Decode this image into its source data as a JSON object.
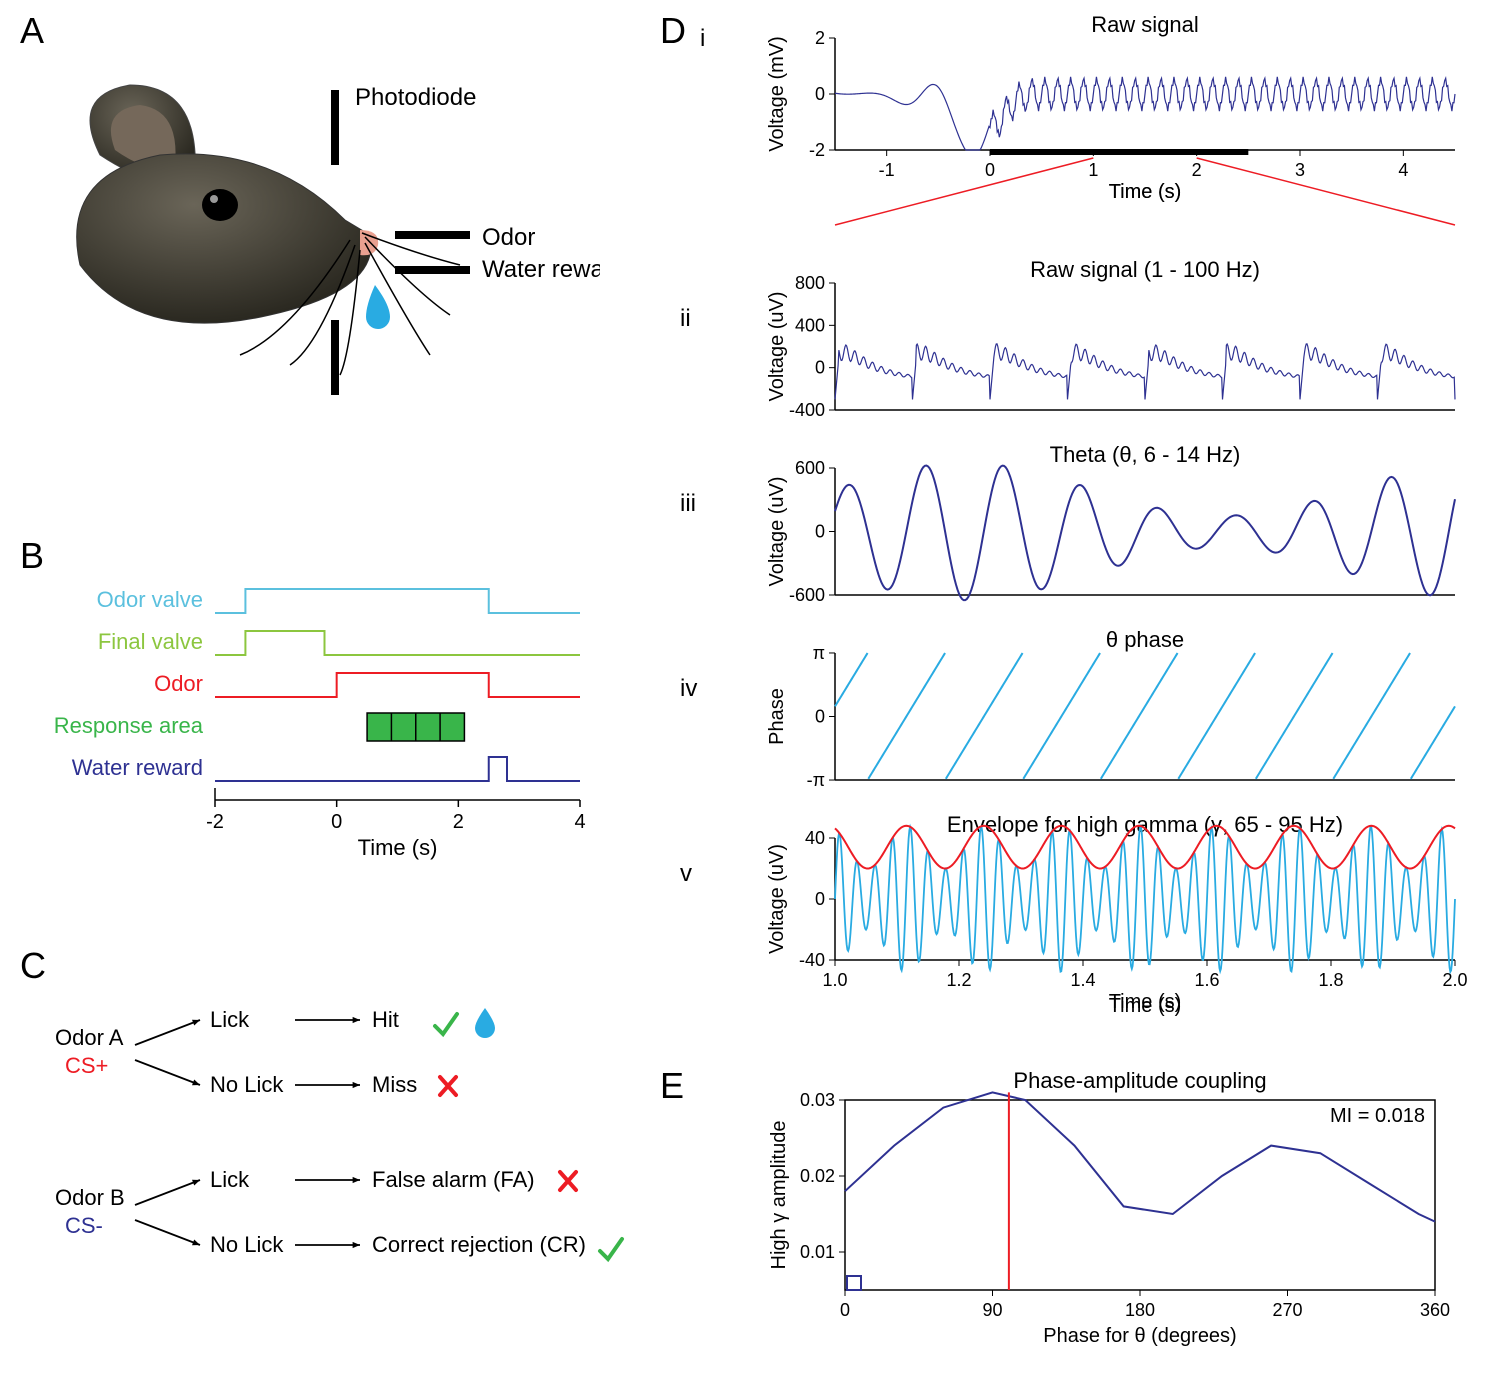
{
  "panelA": {
    "label": "A",
    "photodiode": "Photodiode",
    "odor": "Odor",
    "water_reward": "Water reward",
    "mouse_body_color": "#3a3a30",
    "mouse_ear_color": "#5a5048",
    "mouse_nose_color": "#e8a090",
    "water_drop_color": "#29abe2",
    "line_color": "#000000"
  },
  "panelB": {
    "label": "B",
    "traces": [
      {
        "name": "Odor valve",
        "color": "#5bc0de",
        "on": -1.5,
        "off": 2.5
      },
      {
        "name": "Final valve",
        "color": "#8cc63f",
        "on": -1.5,
        "off": -0.2
      },
      {
        "name": "Odor",
        "color": "#ed1c24",
        "on": 0,
        "off": 2.5
      },
      {
        "name": "Response area",
        "color": "#39b54a",
        "on": 0.5,
        "off": 2.1,
        "filled": true
      },
      {
        "name": "Water reward",
        "color": "#2e3192",
        "on": 2.5,
        "off": 2.8
      }
    ],
    "xlim": [
      -2,
      4
    ],
    "xticks": [
      -2,
      0,
      2,
      4
    ],
    "xlabel": "Time (s)",
    "axis_color": "#000000"
  },
  "panelC": {
    "label": "C",
    "odorA": "Odor A",
    "csPlus": "CS+",
    "csPlus_color": "#ed1c24",
    "odorB": "Odor B",
    "csMinus": "CS-",
    "csMinus_color": "#2e3192",
    "lick": "Lick",
    "noLick": "No Lick",
    "hit": "Hit",
    "miss": "Miss",
    "falseAlarm": "False alarm (FA)",
    "correctRejection": "Correct rejection (CR)",
    "check_color": "#39b54a",
    "cross_color": "#ed1c24",
    "water_drop_color": "#29abe2",
    "arrow_color": "#000000"
  },
  "panelD": {
    "label": "D",
    "sub_i": {
      "label": "i",
      "title": "Raw signal",
      "ylabel": "Voltage (mV)",
      "ylim": [
        -2,
        2
      ],
      "yticks": [
        -2,
        0,
        2
      ],
      "xlim": [
        -1.5,
        4.5
      ],
      "xticks": [
        -1,
        0,
        1,
        2,
        3,
        4
      ],
      "xlabel": "Time (s)",
      "line_color": "#2e3192",
      "bar_start": 0,
      "bar_end": 2.5,
      "zoom_color": "#ed1c24"
    },
    "sub_ii": {
      "label": "ii",
      "title": "Raw signal (1 - 100 Hz)",
      "ylabel": "Voltage (uV)",
      "ylim": [
        -400,
        800
      ],
      "yticks": [
        -400,
        0,
        400,
        800
      ],
      "line_color": "#2e3192"
    },
    "sub_iii": {
      "label": "iii",
      "title": "Theta (θ, 6 - 14 Hz)",
      "ylabel": "Voltage (uV)",
      "ylim": [
        -600,
        600
      ],
      "yticks": [
        -600,
        0,
        600
      ],
      "line_color": "#2e3192"
    },
    "sub_iv": {
      "label": "iv",
      "title": "θ phase",
      "ylabel": "Phase",
      "ylim": [
        -3.14,
        3.14
      ],
      "yticks_labels": [
        "-π",
        "0",
        "π"
      ],
      "line_color": "#29abe2"
    },
    "sub_v": {
      "label": "v",
      "title": "Envelope for high gamma (γ, 65 - 95 Hz)",
      "ylabel": "Voltage (uV)",
      "ylim": [
        -40,
        40
      ],
      "yticks": [
        -40,
        0,
        40
      ],
      "xlim": [
        1.0,
        2.0
      ],
      "xticks": [
        1.0,
        1.2,
        1.4,
        1.6,
        1.8,
        2.0
      ],
      "xlabel": "Time (s)",
      "gamma_color": "#29abe2",
      "envelope_color": "#ed1c24"
    }
  },
  "panelE": {
    "label": "E",
    "title": "Phase-amplitude coupling",
    "ylabel": "High γ amplitude",
    "xlabel": "Phase for θ (degrees)",
    "xlim": [
      0,
      360
    ],
    "xticks": [
      0,
      90,
      180,
      270,
      360
    ],
    "ylim": [
      0.005,
      0.03
    ],
    "yticks": [
      0.01,
      0.02,
      0.03
    ],
    "mi_label": "MI = 0.018",
    "line_color": "#2e3192",
    "peak_marker_color": "#ed1c24",
    "peak_x": 100,
    "curve": [
      [
        0,
        0.018
      ],
      [
        30,
        0.024
      ],
      [
        60,
        0.029
      ],
      [
        90,
        0.031
      ],
      [
        110,
        0.03
      ],
      [
        140,
        0.024
      ],
      [
        170,
        0.016
      ],
      [
        200,
        0.015
      ],
      [
        230,
        0.02
      ],
      [
        260,
        0.024
      ],
      [
        290,
        0.023
      ],
      [
        320,
        0.019
      ],
      [
        350,
        0.015
      ],
      [
        360,
        0.014
      ]
    ]
  }
}
